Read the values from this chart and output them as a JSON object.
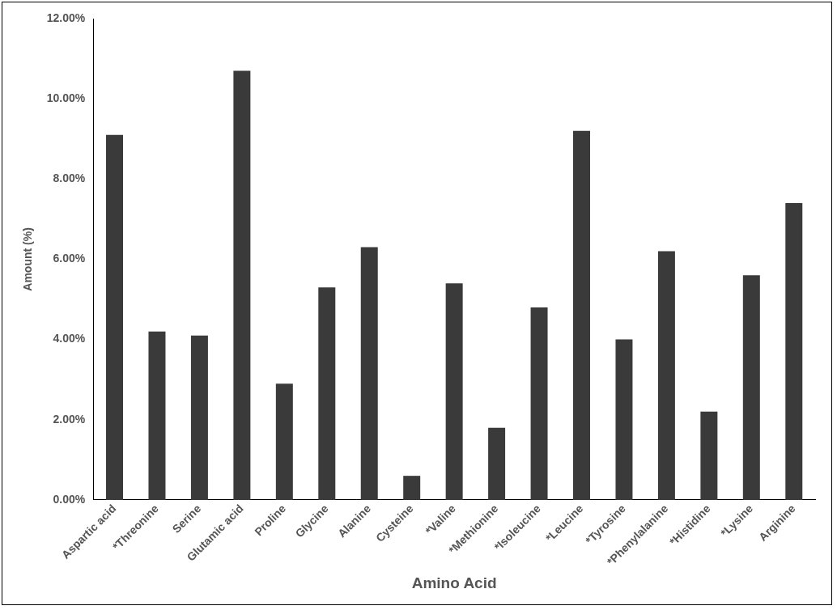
{
  "chart_data": {
    "type": "bar",
    "xlabel": "Amino Acid",
    "ylabel": "Amount (%)",
    "categories": [
      "Aspartic acid",
      "*Threonine",
      "Serine",
      "Glutamic acid",
      "Proline",
      "Glycine",
      "Alanine",
      "Cysteine",
      "*Valine",
      "*Methionine",
      "*Isoleucine",
      "*Leucine",
      "*Tyrosine",
      "*Phenylalanine",
      "*Histidine",
      "*Lysine",
      "Arginine"
    ],
    "values": [
      9.1,
      4.2,
      4.1,
      10.7,
      2.9,
      5.3,
      6.3,
      0.6,
      5.4,
      1.8,
      4.8,
      9.2,
      4.0,
      6.2,
      2.2,
      5.6,
      7.4
    ],
    "color": "#3a3a3a",
    "ylim": [
      0,
      12
    ],
    "yticks": [
      {
        "value": 0,
        "label": "0.00%"
      },
      {
        "value": 2,
        "label": "2.00%"
      },
      {
        "value": 4,
        "label": "4.00%"
      },
      {
        "value": 6,
        "label": "6.00%"
      },
      {
        "value": 8,
        "label": "8.00%"
      },
      {
        "value": 10,
        "label": "10.00%"
      },
      {
        "value": 12,
        "label": "12.00%"
      }
    ],
    "grid": false,
    "legend": false
  }
}
